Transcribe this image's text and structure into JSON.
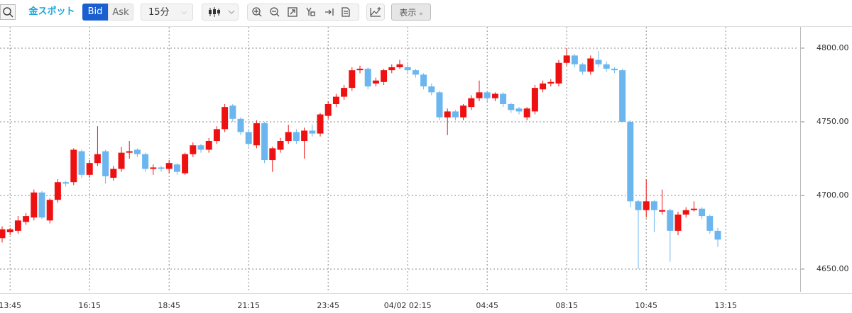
{
  "toolbar": {
    "symbol": "金スポット",
    "bid": "Bid",
    "ask": "Ask",
    "interval": "15分",
    "display": "表示"
  },
  "chart_data": {
    "type": "candlestick",
    "categories": [
      null,
      "13:45",
      null,
      null,
      null,
      null,
      null,
      null,
      null,
      null,
      null,
      "16:15",
      null,
      null,
      null,
      null,
      null,
      null,
      null,
      null,
      null,
      "18:45",
      null,
      null,
      null,
      null,
      null,
      null,
      null,
      null,
      null,
      "21:15",
      null,
      null,
      null,
      null,
      null,
      null,
      null,
      null,
      null,
      "23:45",
      null,
      null,
      null,
      null,
      null,
      null,
      null,
      null,
      null,
      "04/02 02:15",
      null,
      null,
      null,
      null,
      null,
      null,
      null,
      null,
      null,
      "04:45",
      null,
      null,
      null,
      null,
      null,
      null,
      null,
      null,
      null,
      "08:15",
      null,
      null,
      null,
      null,
      null,
      null,
      null,
      null,
      null,
      "10:45",
      null,
      null,
      null,
      null,
      null,
      null,
      null,
      null,
      null,
      "13:15"
    ],
    "open": [
      4671,
      4675,
      4676,
      4682,
      4685,
      4702,
      4683,
      4697,
      4709,
      4709,
      4730,
      4714,
      4722,
      4730,
      4712,
      4718,
      4729,
      4731,
      4728,
      4718,
      4719,
      4718,
      4721,
      4715,
      4728,
      4734,
      4731,
      4737,
      4745,
      4761,
      4752,
      4743,
      4734,
      4749,
      4724,
      4731,
      4737,
      4743,
      4737,
      4744,
      4742,
      4754,
      4762,
      4767,
      4773,
      4785,
      4786,
      4776,
      4777,
      4785,
      4787,
      4787,
      4785,
      4782,
      4774,
      4770,
      4753,
      4757,
      4753,
      4760,
      4766,
      4770,
      4766,
      4769,
      4762,
      4759,
      4753,
      4757,
      4772,
      4776,
      4776,
      4790,
      4795,
      4789,
      4784,
      4792,
      4789,
      4786,
      4785,
      4750,
      4696,
      4690,
      4696,
      4689,
      4690,
      4676,
      4687,
      4690,
      4691,
      4686,
      4676,
      null
    ],
    "high": [
      4679,
      4678,
      4686,
      4688,
      4704,
      4703,
      4698,
      4711,
      4710,
      4732,
      4731,
      4724,
      4747,
      4731,
      4720,
      4733,
      4737,
      4732,
      4729,
      4721,
      4720,
      4724,
      4722,
      4729,
      4736,
      4735,
      4739,
      4747,
      4762,
      4762,
      4753,
      4745,
      4751,
      4750,
      4733,
      4739,
      4748,
      4745,
      4746,
      4748,
      4756,
      4764,
      4769,
      4775,
      4787,
      4788,
      4787,
      4780,
      4786,
      4789,
      4792,
      4789,
      4786,
      4783,
      4776,
      4771,
      4759,
      4758,
      4762,
      4768,
      4778,
      4771,
      4770,
      4770,
      4763,
      4760,
      4760,
      4775,
      4778,
      4779,
      4792,
      4800,
      4796,
      4790,
      4795,
      4798,
      4791,
      4787,
      4786,
      4751,
      4697,
      4711,
      4697,
      4704,
      4691,
      4689,
      4692,
      4696,
      4692,
      4687,
      4678,
      null
    ],
    "low": [
      4668,
      4673,
      4674,
      4680,
      4683,
      4684,
      4681,
      4695,
      4706,
      4707,
      4712,
      4712,
      4720,
      4708,
      4710,
      4716,
      4725,
      4726,
      4716,
      4714,
      4716,
      4715,
      4714,
      4714,
      4726,
      4729,
      4729,
      4735,
      4743,
      4750,
      4741,
      4733,
      4732,
      4722,
      4716,
      4729,
      4735,
      4735,
      4725,
      4740,
      4740,
      4752,
      4760,
      4765,
      4771,
      4783,
      4772,
      4774,
      4775,
      4783,
      4786,
      4783,
      4780,
      4772,
      4768,
      4751,
      4741,
      4751,
      4751,
      4758,
      4764,
      4764,
      4764,
      4760,
      4756,
      4755,
      4751,
      4755,
      4770,
      4774,
      4774,
      4788,
      4787,
      4782,
      4782,
      4787,
      4784,
      4783,
      4750,
      4692,
      4650,
      4685,
      4675,
      4687,
      4655,
      4673,
      4685,
      4689,
      4684,
      4674,
      4665,
      null
    ],
    "close": [
      4677,
      4677,
      4683,
      4686,
      4702,
      4685,
      4697,
      4709,
      4708,
      4731,
      4714,
      4722,
      4728,
      4713,
      4718,
      4729,
      4730,
      4728,
      4718,
      4719,
      4718,
      4722,
      4716,
      4728,
      4734,
      4731,
      4737,
      4745,
      4760,
      4752,
      4743,
      4735,
      4749,
      4724,
      4732,
      4737,
      4743,
      4737,
      4744,
      4742,
      4755,
      4762,
      4767,
      4773,
      4785,
      4786,
      4774,
      4778,
      4785,
      4787,
      4789,
      4785,
      4782,
      4774,
      4770,
      4753,
      4757,
      4753,
      4761,
      4766,
      4770,
      4766,
      4769,
      4762,
      4758,
      4757,
      4759,
      4773,
      4776,
      4777,
      4790,
      4795,
      4789,
      4784,
      4793,
      4789,
      4786,
      4785,
      4750,
      4696,
      4690,
      4696,
      4690,
      4690,
      4676,
      4687,
      4690,
      4691,
      4686,
      4676,
      4670,
      null
    ],
    "up_color": "#ee1111",
    "down_color": "#6cb6f0",
    "ylim": [
      4634.6,
      4814.4
    ],
    "yticks": [
      {
        "value": 4650,
        "label": "4650.00"
      },
      {
        "value": 4700,
        "label": "4700.00"
      },
      {
        "value": 4750,
        "label": "4750.00"
      },
      {
        "value": 4800,
        "label": "4800.00"
      }
    ],
    "grid": true
  }
}
